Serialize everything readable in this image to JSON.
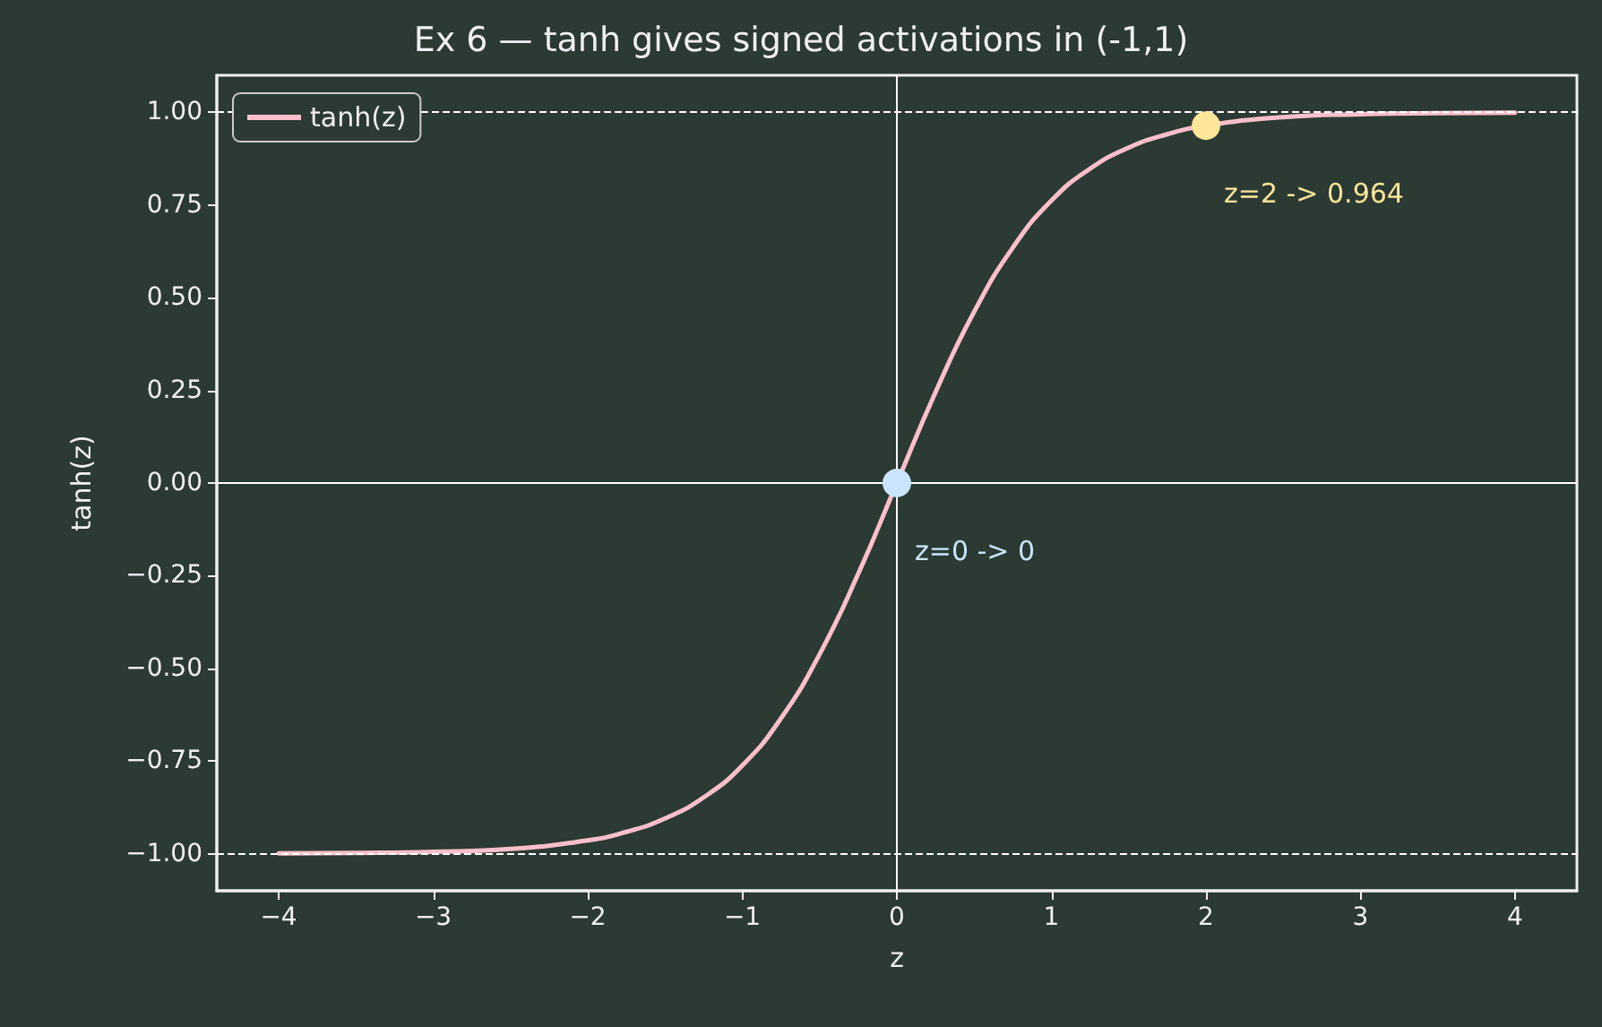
{
  "chart_data": {
    "type": "line",
    "title": "Ex 6 — tanh gives signed activations in (-1,1)",
    "xlabel": "z",
    "ylabel": "tanh(z)",
    "xlim": [
      -4.4,
      4.4
    ],
    "ylim": [
      -1.1,
      1.1
    ],
    "xticks": [
      {
        "value": -4,
        "label": "−4"
      },
      {
        "value": -3,
        "label": "−3"
      },
      {
        "value": -2,
        "label": "−2"
      },
      {
        "value": -1,
        "label": "−1"
      },
      0,
      1,
      2,
      3,
      4
    ],
    "yticks": [
      {
        "value": -1,
        "label": "−1.00"
      },
      {
        "value": -0.75,
        "label": "−0.75"
      },
      {
        "value": -0.5,
        "label": "−0.50"
      },
      {
        "value": -0.25,
        "label": "−0.25"
      },
      {
        "value": 0,
        "label": "0.00"
      },
      {
        "value": 0.25,
        "label": "0.25"
      },
      {
        "value": 0.5,
        "label": "0.50"
      },
      {
        "value": 0.75,
        "label": "0.75"
      },
      {
        "value": 1,
        "label": "1.00"
      }
    ],
    "grid": false,
    "legend": "top left",
    "marker": "none",
    "line_style": "solid",
    "series": [
      {
        "name": "tanh(z)",
        "color": "#ffc0cb",
        "x": [
          -4,
          -3.5,
          -3,
          -2.5,
          -2,
          -1.75,
          -1.5,
          -1.25,
          -1,
          -0.75,
          -0.5,
          -0.25,
          0,
          0.25,
          0.5,
          0.75,
          1,
          1.25,
          1.5,
          1.75,
          2,
          2.5,
          3,
          3.5,
          4
        ],
        "values": [
          -0.999,
          -0.998,
          -0.995,
          -0.987,
          -0.964,
          -0.941,
          -0.905,
          -0.848,
          -0.762,
          -0.635,
          -0.462,
          -0.245,
          0,
          0.245,
          0.462,
          0.635,
          0.762,
          0.848,
          0.905,
          0.941,
          0.964,
          0.987,
          0.995,
          0.998,
          0.999
        ]
      },
      {
        "type": "scatter",
        "marker": "circle",
        "color": "#cce5ff",
        "x": [
          0
        ],
        "values": [
          0
        ]
      },
      {
        "type": "scatter",
        "marker": "circle",
        "color": "#ffe699",
        "x": [
          2
        ],
        "values": [
          0.964
        ]
      }
    ],
    "ref_lines": [
      {
        "axis": "x",
        "value": 0,
        "color": "#ffffff",
        "line_style": "solid"
      },
      {
        "axis": "y",
        "value": 0,
        "color": "#ffffff",
        "line_style": "solid"
      },
      {
        "axis": "y",
        "value": 1,
        "color": "#ffffff",
        "line_style": "dashed"
      },
      {
        "axis": "y",
        "value": -1,
        "color": "#ffffff",
        "line_style": "dashed"
      }
    ],
    "annotations": [
      {
        "text": "z=0 -> 0",
        "x": 0,
        "y": 0
      },
      {
        "text": "z=2 -> 0.964",
        "x": 2,
        "y": 0.964
      }
    ]
  }
}
